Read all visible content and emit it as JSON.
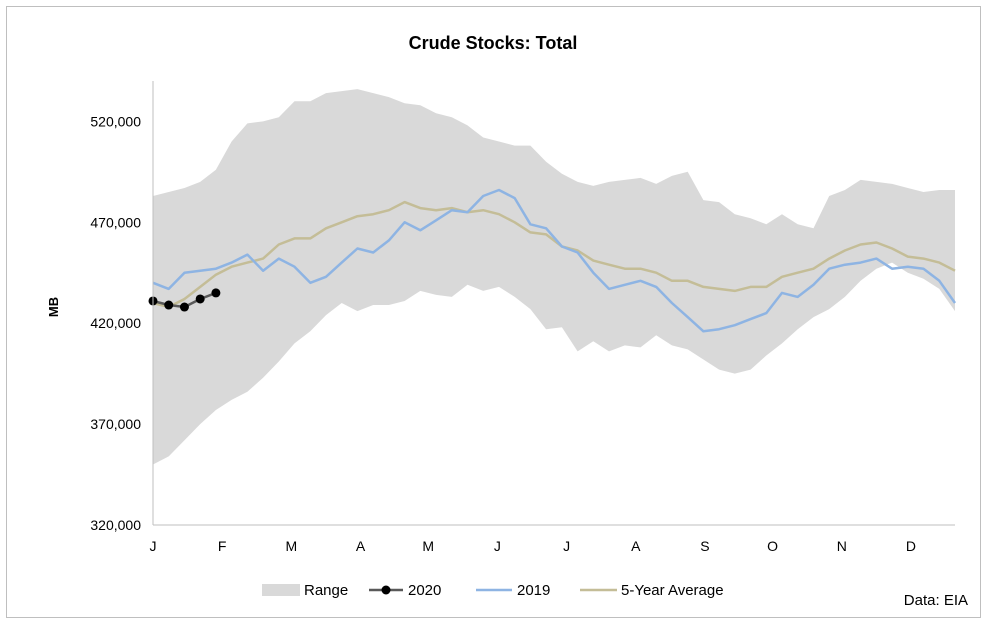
{
  "chart_data": {
    "type": "line",
    "title": "Crude Stocks: Total",
    "ylabel": "MB",
    "xlabel": "",
    "source_note": "Data: EIA",
    "ylim": [
      320000,
      540000
    ],
    "yticks": [
      320000,
      370000,
      420000,
      470000,
      520000
    ],
    "ytick_labels": [
      "320,000",
      "370,000",
      "420,000",
      "470,000",
      "520,000"
    ],
    "xlim": [
      1,
      52
    ],
    "month_labels": [
      "J",
      "F",
      "M",
      "A",
      "M",
      "J",
      "J",
      "A",
      "S",
      "O",
      "N",
      "D"
    ],
    "month_label_weeks": [
      1,
      5.4,
      9.8,
      14.2,
      18.5,
      22.9,
      27.3,
      31.7,
      36.1,
      40.4,
      44.8,
      49.2
    ],
    "legend": [
      "Range",
      "2020",
      "2019",
      "5-Year Average"
    ],
    "legend_position": "bottom",
    "grid": false,
    "colors": {
      "range": "#d9d9d9",
      "s2020": "#000000",
      "s2020_line": "#595959",
      "s2019": "#8eb4e3",
      "avg": "#c4bd97"
    },
    "range": {
      "weeks": [
        1,
        2,
        3,
        4,
        5,
        6,
        7,
        8,
        9,
        10,
        11,
        12,
        13,
        14,
        15,
        16,
        17,
        18,
        19,
        20,
        21,
        22,
        23,
        24,
        25,
        26,
        27,
        28,
        29,
        30,
        31,
        32,
        33,
        34,
        35,
        36,
        37,
        38,
        39,
        40,
        41,
        42,
        43,
        44,
        45,
        46,
        47,
        48,
        49,
        50,
        51,
        52
      ],
      "upper": [
        483000,
        485000,
        487000,
        490000,
        496000,
        510000,
        519000,
        520000,
        522000,
        530000,
        530000,
        534000,
        535000,
        536000,
        534000,
        532000,
        529000,
        528000,
        524000,
        522000,
        518000,
        512000,
        510000,
        508000,
        508000,
        500000,
        494000,
        490000,
        488000,
        490000,
        491000,
        492000,
        489000,
        493000,
        495000,
        481000,
        480000,
        474000,
        472000,
        469000,
        474000,
        469000,
        467000,
        483000,
        486000,
        491000,
        490000,
        489000,
        487000,
        485000,
        486000,
        486000
      ],
      "lower": [
        350000,
        354000,
        362000,
        370000,
        377000,
        382000,
        386000,
        393000,
        401000,
        410000,
        416000,
        424000,
        430000,
        426000,
        429000,
        429000,
        431000,
        436000,
        434000,
        433000,
        439000,
        436000,
        438000,
        433000,
        427000,
        417000,
        418000,
        406000,
        411000,
        406000,
        409000,
        408000,
        414000,
        409000,
        407000,
        402000,
        397000,
        395000,
        397000,
        404000,
        410000,
        417000,
        423000,
        427000,
        433000,
        441000,
        447000,
        450000,
        445000,
        442000,
        437000,
        426000
      ]
    },
    "series": [
      {
        "name": "2020",
        "weeks": [
          1,
          2,
          3,
          4,
          5
        ],
        "values": [
          431000,
          429000,
          428000,
          432000,
          435000
        ]
      },
      {
        "name": "2019",
        "weeks": [
          1,
          2,
          3,
          4,
          5,
          6,
          7,
          8,
          9,
          10,
          11,
          12,
          13,
          14,
          15,
          16,
          17,
          18,
          19,
          20,
          21,
          22,
          23,
          24,
          25,
          26,
          27,
          28,
          29,
          30,
          31,
          32,
          33,
          34,
          35,
          36,
          37,
          38,
          39,
          40,
          41,
          42,
          43,
          44,
          45,
          46,
          47,
          48,
          49,
          50,
          51,
          52
        ],
        "values": [
          440000,
          437000,
          445000,
          446000,
          447000,
          450000,
          454000,
          446000,
          452000,
          448000,
          440000,
          443000,
          450000,
          457000,
          455000,
          461000,
          470000,
          466000,
          471000,
          476000,
          475000,
          483000,
          486000,
          482000,
          469000,
          467000,
          458000,
          455000,
          445000,
          437000,
          439000,
          441000,
          438000,
          430000,
          423000,
          416000,
          417000,
          419000,
          422000,
          425000,
          435000,
          433000,
          439000,
          447000,
          449000,
          450000,
          452000,
          447000,
          448000,
          447000,
          441000,
          430000
        ]
      },
      {
        "name": "5-Year Average",
        "weeks": [
          1,
          2,
          3,
          4,
          5,
          6,
          7,
          8,
          9,
          10,
          11,
          12,
          13,
          14,
          15,
          16,
          17,
          18,
          19,
          20,
          21,
          22,
          23,
          24,
          25,
          26,
          27,
          28,
          29,
          30,
          31,
          32,
          33,
          34,
          35,
          36,
          37,
          38,
          39,
          40,
          41,
          42,
          43,
          44,
          45,
          46,
          47,
          48,
          49,
          50,
          51,
          52
        ],
        "values": [
          430000,
          428000,
          432000,
          438000,
          444000,
          448000,
          450000,
          452000,
          459000,
          462000,
          462000,
          467000,
          470000,
          473000,
          474000,
          476000,
          480000,
          477000,
          476000,
          477000,
          475000,
          476000,
          474000,
          470000,
          465000,
          464000,
          458000,
          456000,
          451000,
          449000,
          447000,
          447000,
          445000,
          441000,
          441000,
          438000,
          437000,
          436000,
          438000,
          438000,
          443000,
          445000,
          447000,
          452000,
          456000,
          459000,
          460000,
          457000,
          453000,
          452000,
          450000,
          446000
        ]
      }
    ]
  }
}
